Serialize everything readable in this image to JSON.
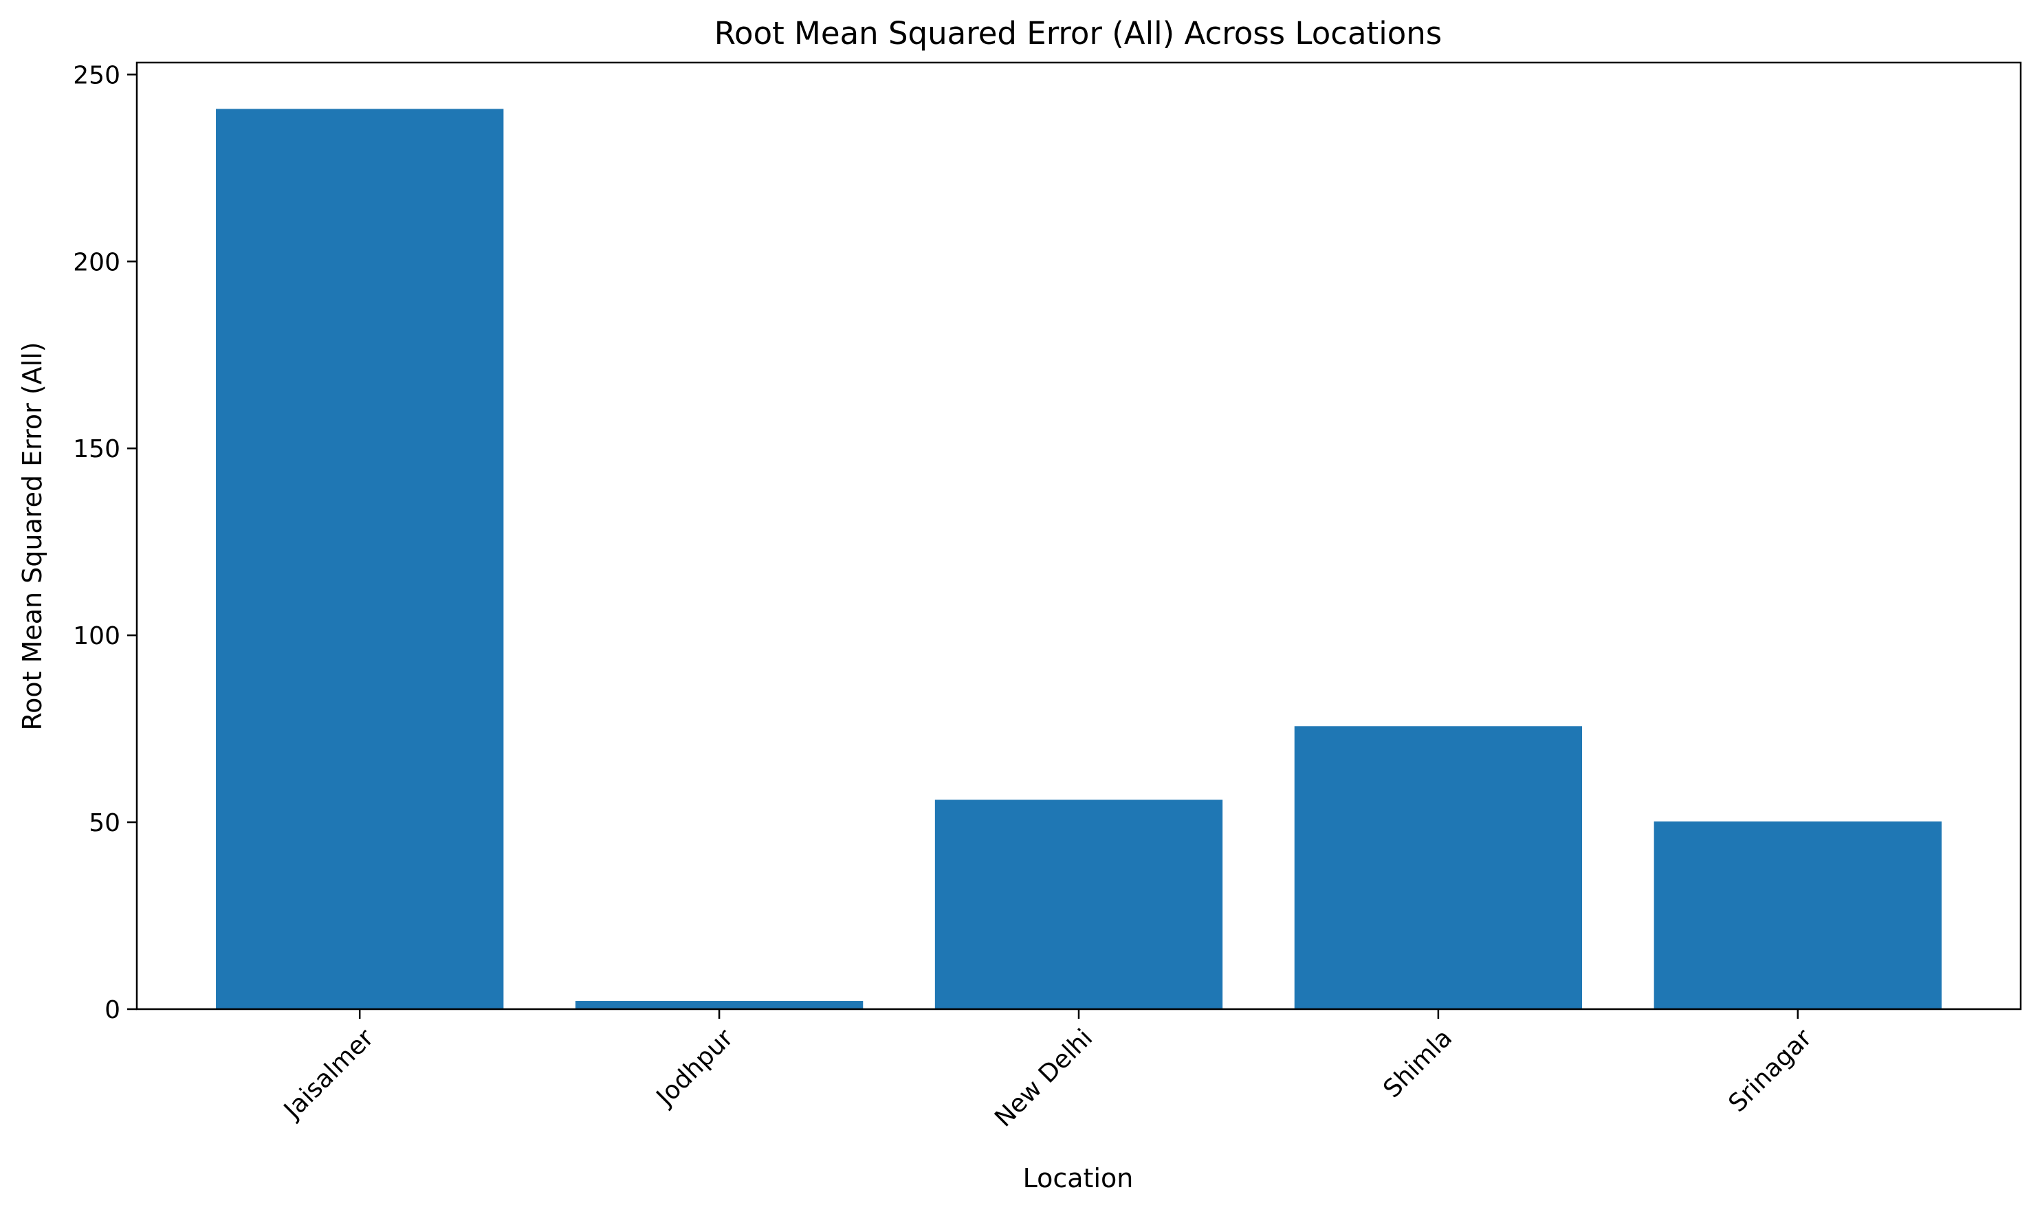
{
  "chart_data": {
    "type": "bar",
    "title": "Root Mean Squared Error (All) Across Locations",
    "xlabel": "Location",
    "ylabel": "Root Mean Squared Error (All)",
    "categories": [
      "Jaisalmer",
      "Jodhpur",
      "New Delhi",
      "Shimla",
      "Srinagar"
    ],
    "values": [
      240.8,
      2.2,
      56.0,
      75.7,
      50.2
    ],
    "ylim": [
      0,
      253.2
    ],
    "yticks": [
      0,
      50,
      100,
      150,
      200,
      250
    ],
    "ytick_labels": [
      "0",
      "50",
      "100",
      "150",
      "200",
      "250"
    ],
    "grid": false,
    "legend": "none",
    "bar_color": "#1f77b4"
  }
}
